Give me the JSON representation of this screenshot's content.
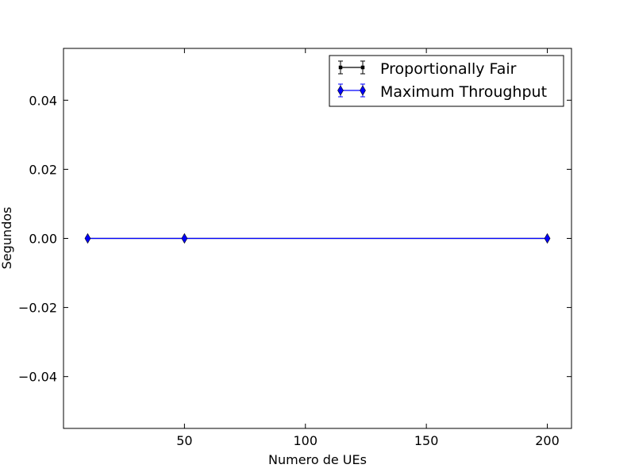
{
  "chart_data": {
    "type": "line",
    "xlabel": "Numero de UEs",
    "ylabel": "Segundos",
    "xlim": [
      0,
      210
    ],
    "ylim": [
      -0.055,
      0.055
    ],
    "xticks": [
      50,
      100,
      150,
      200
    ],
    "xtick_labels": [
      "50",
      "100",
      "150",
      "200"
    ],
    "yticks": [
      0.04,
      0.02,
      0.0,
      -0.02,
      -0.04
    ],
    "ytick_labels": [
      "0.04",
      "0.02",
      "0.00",
      "−0.02",
      "−0.04"
    ],
    "legend_position": "top-right",
    "grid": false,
    "series": [
      {
        "name": "Proportionally Fair",
        "color": "#000000",
        "marker": "square",
        "x": [
          10,
          50,
          200
        ],
        "y": [
          0.0,
          0.0,
          0.0
        ]
      },
      {
        "name": "Maximum Throughput",
        "color": "#0000ff",
        "marker": "diamond",
        "x": [
          10,
          50,
          200
        ],
        "y": [
          0.0,
          0.0,
          0.0
        ]
      }
    ]
  }
}
